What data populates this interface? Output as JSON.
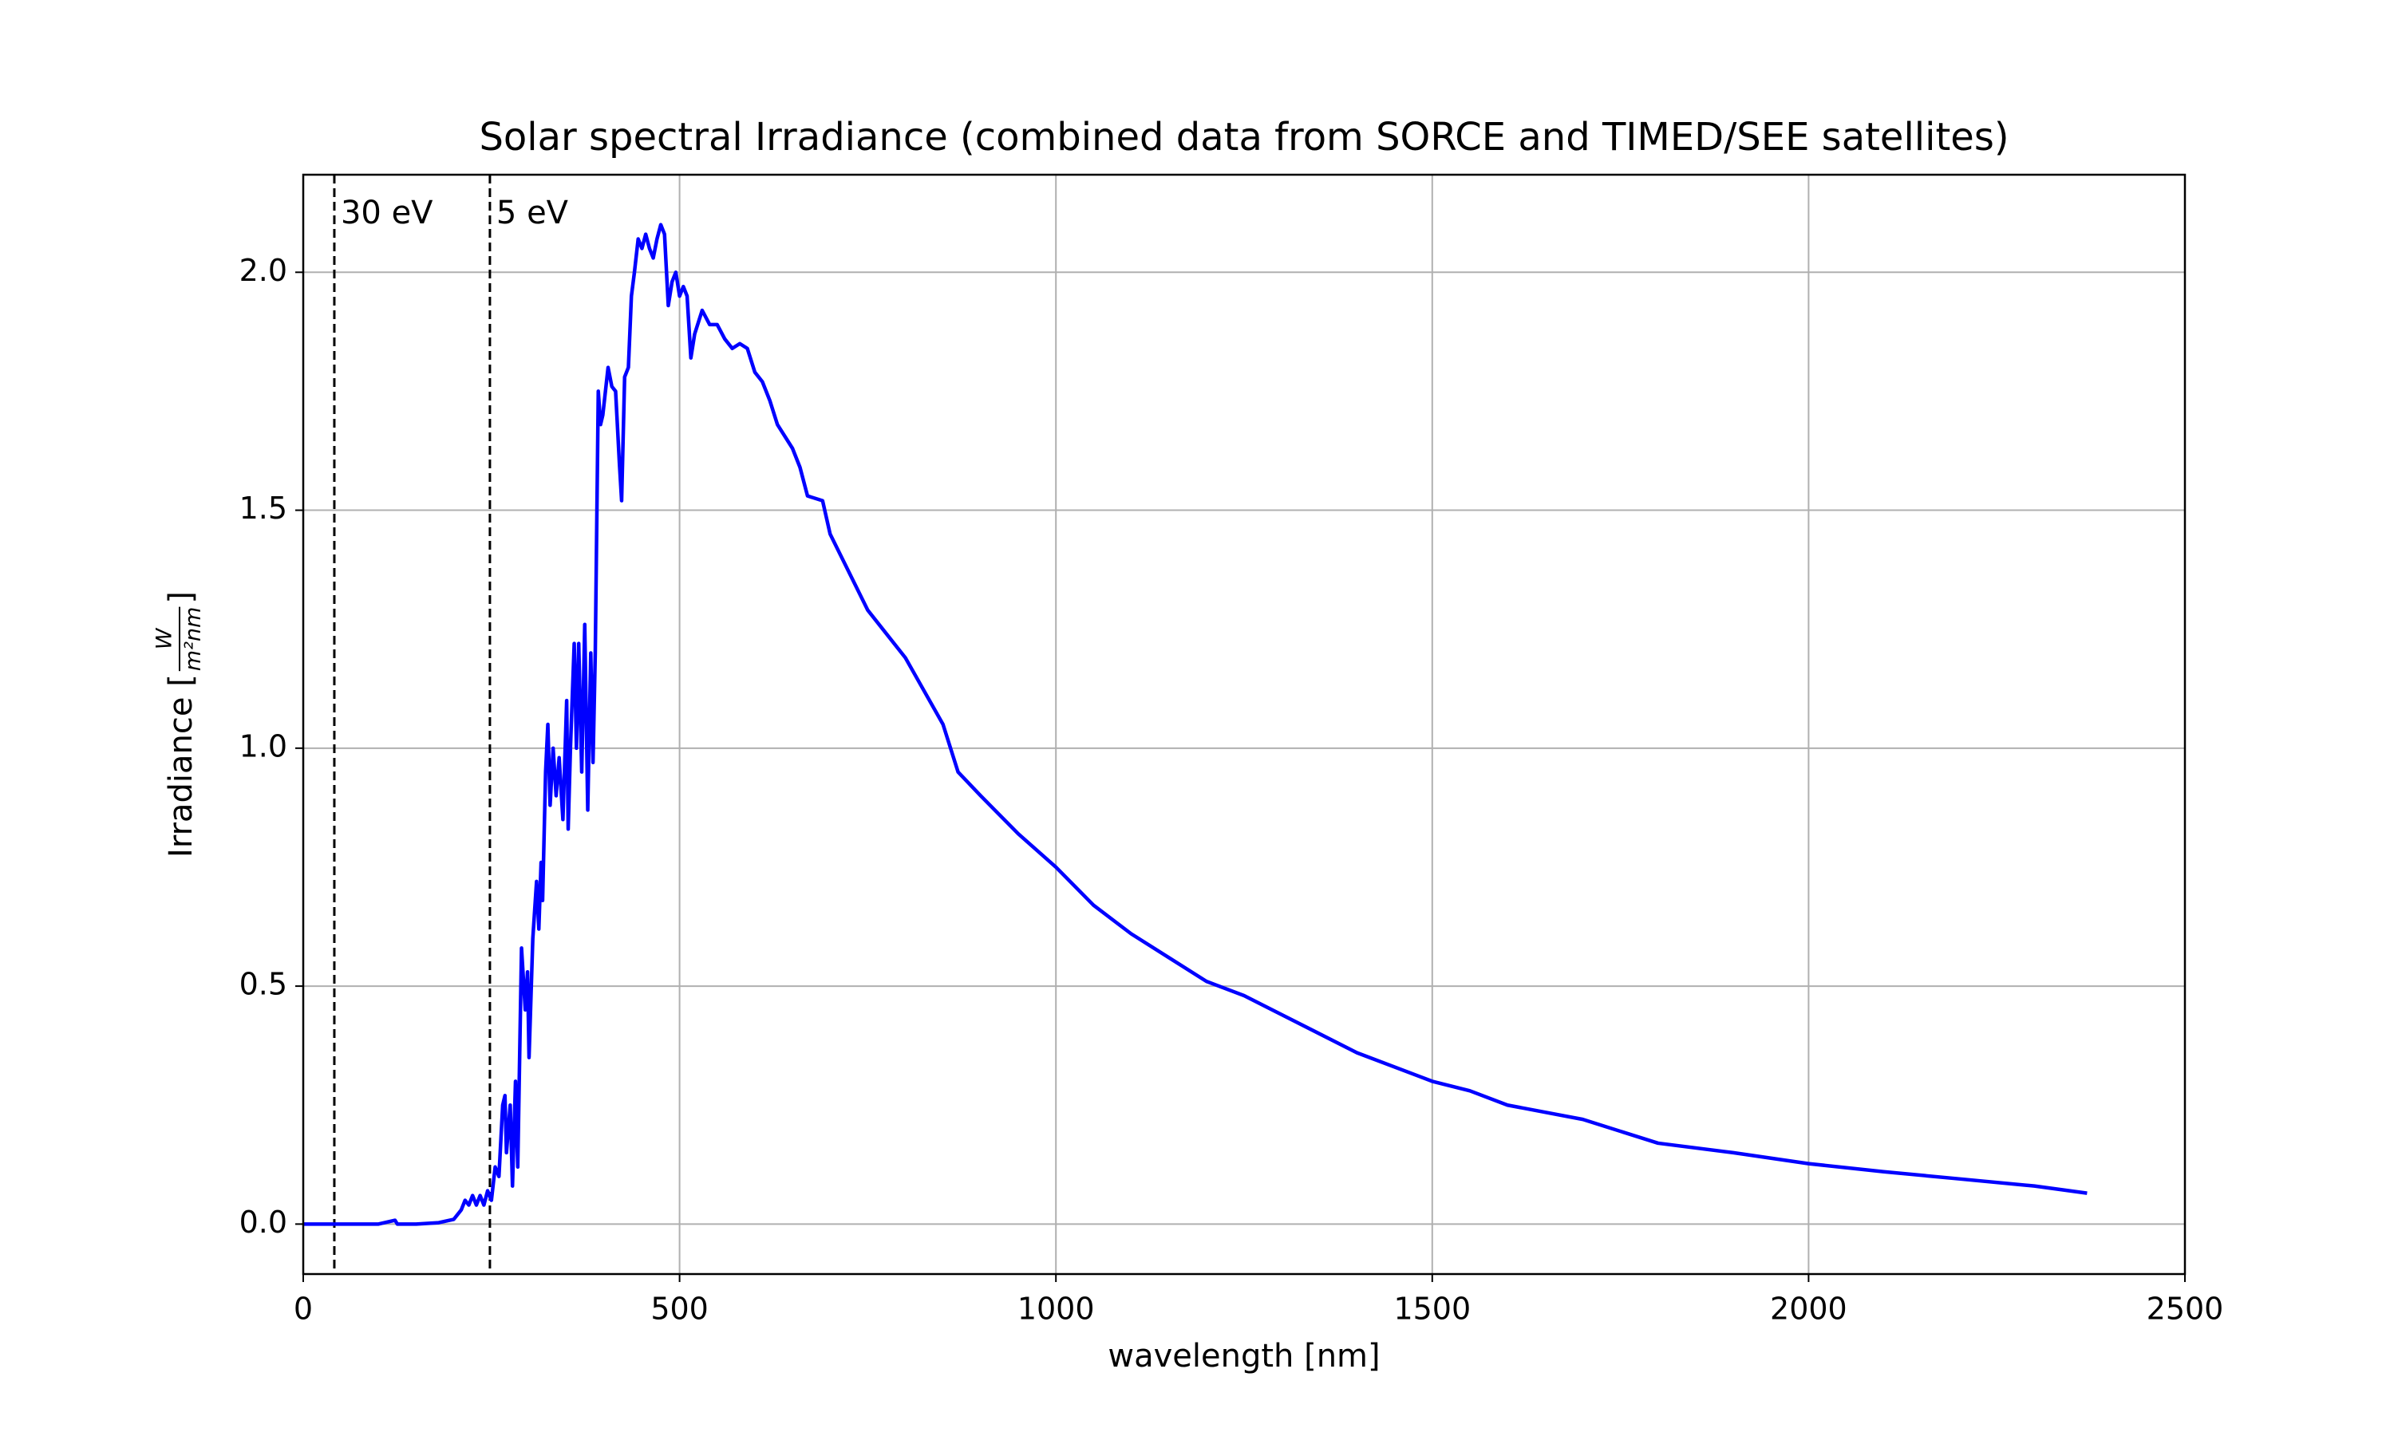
{
  "chart_data": {
    "type": "line",
    "title": "Solar spectral Irradiance (combined data from SORCE and TIMED/SEE satellites)",
    "xlabel": "wavelength [nm]",
    "ylabel": "Irradiance [",
    "ylabel_unit": {
      "numerator": "W",
      "denominator": "m²nm"
    },
    "ylabel_end": "]",
    "xlim": [
      0,
      2500
    ],
    "ylim": [
      -0.105,
      2.205
    ],
    "xticks": [
      0,
      500,
      1000,
      1500,
      2000,
      2500
    ],
    "yticks": [
      {
        "value": 0,
        "label": "0.0"
      },
      0.5,
      {
        "value": 1,
        "label": "1.0"
      },
      1.5,
      {
        "value": 2,
        "label": "2.0"
      }
    ],
    "grid": true,
    "vlines": [
      {
        "x": 41.3,
        "label": "30 eV",
        "color": "#000000"
      },
      {
        "x": 248,
        "label": "5 eV",
        "color": "#000000"
      }
    ],
    "series": [
      {
        "color": "#0000ff",
        "x": [
          0,
          100,
          122,
          125,
          150,
          180,
          200,
          210,
          215,
          220,
          225,
          230,
          235,
          240,
          245,
          250,
          255,
          260,
          265,
          268,
          270,
          275,
          278,
          282,
          285,
          290,
          295,
          298,
          300,
          305,
          310,
          313,
          316,
          318,
          322,
          325,
          328,
          332,
          336,
          340,
          345,
          350,
          352,
          355,
          360,
          363,
          366,
          370,
          374,
          378,
          382,
          385,
          388,
          392,
          395,
          398,
          405,
          410,
          415,
          420,
          423,
          427,
          432,
          436,
          440,
          445,
          450,
          455,
          460,
          465,
          470,
          475,
          480,
          485,
          490,
          495,
          500,
          505,
          510,
          515,
          520,
          530,
          540,
          550,
          560,
          570,
          580,
          590,
          600,
          610,
          620,
          630,
          650,
          660,
          670,
          690,
          700,
          750,
          800,
          850,
          870,
          900,
          950,
          1000,
          1050,
          1100,
          1150,
          1200,
          1250,
          1300,
          1400,
          1500,
          1550,
          1600,
          1700,
          1800,
          1900,
          2000,
          2100,
          2200,
          2300,
          2370
        ],
        "values": [
          0,
          0,
          0.008,
          0,
          0,
          0.003,
          0.01,
          0.03,
          0.05,
          0.04,
          0.06,
          0.04,
          0.06,
          0.04,
          0.07,
          0.05,
          0.12,
          0.1,
          0.25,
          0.27,
          0.15,
          0.25,
          0.08,
          0.3,
          0.12,
          0.58,
          0.45,
          0.53,
          0.35,
          0.6,
          0.72,
          0.62,
          0.76,
          0.68,
          0.95,
          1.05,
          0.88,
          1.0,
          0.9,
          0.98,
          0.85,
          1.1,
          0.83,
          1.0,
          1.22,
          1.0,
          1.22,
          0.95,
          1.26,
          0.87,
          1.2,
          0.97,
          1.2,
          1.75,
          1.68,
          1.7,
          1.8,
          1.76,
          1.75,
          1.6,
          1.52,
          1.78,
          1.8,
          1.95,
          2.0,
          2.07,
          2.05,
          2.08,
          2.05,
          2.03,
          2.07,
          2.1,
          2.08,
          1.93,
          1.98,
          2.0,
          1.95,
          1.97,
          1.95,
          1.82,
          1.87,
          1.92,
          1.89,
          1.89,
          1.86,
          1.84,
          1.85,
          1.84,
          1.79,
          1.77,
          1.73,
          1.68,
          1.63,
          1.59,
          1.53,
          1.52,
          1.45,
          1.29,
          1.19,
          1.05,
          0.95,
          0.9,
          0.82,
          0.75,
          0.67,
          0.61,
          0.56,
          0.51,
          0.48,
          0.44,
          0.36,
          0.3,
          0.28,
          0.25,
          0.22,
          0.17,
          0.15,
          0.127,
          0.11,
          0.095,
          0.08,
          0.065
        ]
      }
    ]
  }
}
